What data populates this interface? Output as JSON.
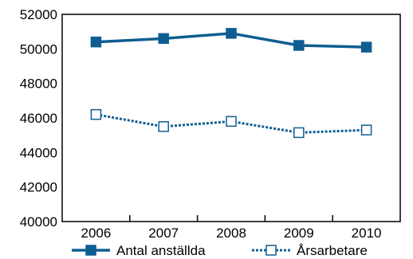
{
  "chart_data": {
    "type": "line",
    "title": "",
    "xlabel": "",
    "ylabel": "",
    "x": [
      "2006",
      "2007",
      "2008",
      "2009",
      "2010"
    ],
    "ylim": [
      40000,
      52000
    ],
    "yticks": [
      "40000",
      "42000",
      "44000",
      "46000",
      "48000",
      "50000",
      "52000"
    ],
    "grid": false,
    "legend_position": "bottom",
    "series": [
      {
        "name": "Antal anställda",
        "values": [
          50400,
          50600,
          50900,
          50200,
          50100
        ],
        "color": "#0f5e92",
        "line_style": "solid",
        "marker": "filled-square"
      },
      {
        "name": "Årsarbetare",
        "values": [
          46200,
          45500,
          45800,
          45150,
          45300
        ],
        "color": "#0f5e92",
        "line_style": "dotted",
        "marker": "open-square"
      }
    ]
  }
}
